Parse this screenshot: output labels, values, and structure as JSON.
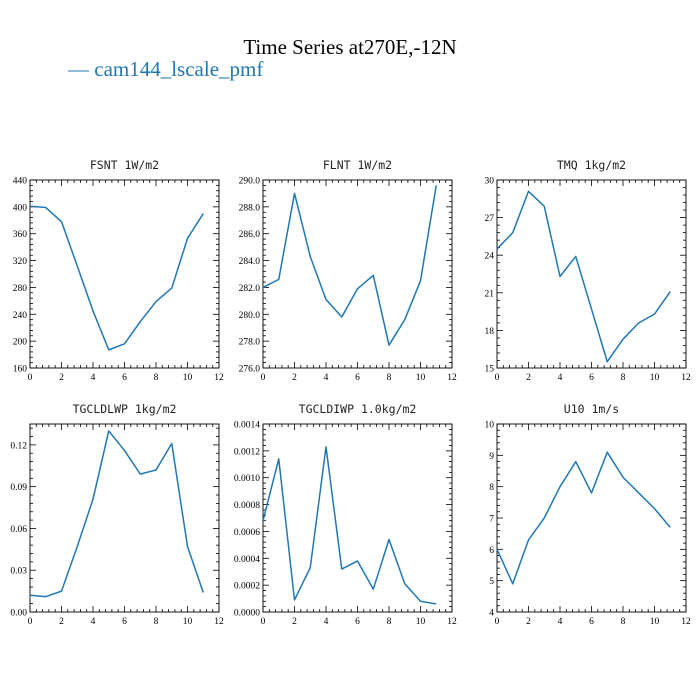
{
  "figure": {
    "title": "Time Series at270E,-12N",
    "legend_label": "— cam144_lscale_pmf",
    "series_color": "#1f77b4"
  },
  "chart_data": [
    {
      "type": "line",
      "title": "FSNT   1W/m2",
      "xlim": [
        0,
        12
      ],
      "ylim": [
        160,
        440
      ],
      "xticks": [
        0,
        2,
        4,
        6,
        8,
        10,
        12
      ],
      "xtick_labels": [
        "0",
        "2",
        "4",
        "6",
        "8",
        "10",
        "12"
      ],
      "yticks": [
        160,
        200,
        240,
        280,
        320,
        360,
        400,
        440
      ],
      "ytick_labels": [
        "160",
        "200",
        "240",
        "280",
        "320",
        "360",
        "400",
        "440"
      ],
      "series": [
        {
          "x": [
            0,
            1,
            2,
            3,
            4,
            5,
            6,
            7,
            8,
            9,
            10,
            11
          ],
          "values": [
            401,
            399,
            378,
            312,
            245,
            187,
            196,
            229,
            259,
            279,
            353,
            390
          ]
        }
      ]
    },
    {
      "type": "line",
      "title": "FLNT   1W/m2",
      "xlim": [
        0,
        12
      ],
      "ylim": [
        276,
        290
      ],
      "xticks": [
        0,
        2,
        4,
        6,
        8,
        10,
        12
      ],
      "xtick_labels": [
        "0",
        "2",
        "4",
        "6",
        "8",
        "10",
        "12"
      ],
      "yticks": [
        276,
        278,
        280,
        282,
        284,
        286,
        288,
        290
      ],
      "ytick_labels": [
        "276.0",
        "278.0",
        "280.0",
        "282.0",
        "284.0",
        "286.0",
        "288.0",
        "290.0"
      ],
      "series": [
        {
          "x": [
            0,
            1,
            2,
            3,
            4,
            5,
            6,
            7,
            8,
            9,
            10,
            11
          ],
          "values": [
            282.0,
            282.6,
            289.0,
            284.3,
            281.1,
            279.8,
            281.9,
            282.9,
            277.7,
            279.6,
            282.5,
            289.6
          ]
        }
      ]
    },
    {
      "type": "line",
      "title": "TMQ   1kg/m2",
      "xlim": [
        0,
        12
      ],
      "ylim": [
        15,
        30
      ],
      "xticks": [
        0,
        2,
        4,
        6,
        8,
        10,
        12
      ],
      "xtick_labels": [
        "0",
        "2",
        "4",
        "6",
        "8",
        "10",
        "12"
      ],
      "yticks": [
        15,
        18,
        21,
        24,
        27,
        30
      ],
      "ytick_labels": [
        "15",
        "18",
        "21",
        "24",
        "27",
        "30"
      ],
      "series": [
        {
          "x": [
            0,
            1,
            2,
            3,
            4,
            5,
            6,
            7,
            8,
            9,
            10,
            11
          ],
          "values": [
            24.5,
            25.8,
            29.1,
            27.9,
            22.3,
            23.9,
            19.7,
            15.5,
            17.3,
            18.6,
            19.3,
            21.1
          ]
        }
      ]
    },
    {
      "type": "line",
      "title": "TGCLDLWP   1kg/m2",
      "xlim": [
        0,
        12
      ],
      "ylim": [
        0,
        0.135
      ],
      "xticks": [
        0,
        2,
        4,
        6,
        8,
        10,
        12
      ],
      "xtick_labels": [
        "0",
        "2",
        "4",
        "6",
        "8",
        "10",
        "12"
      ],
      "yticks": [
        0,
        0.03,
        0.06,
        0.09,
        0.12
      ],
      "ytick_labels": [
        "0.00",
        "0.03",
        "0.06",
        "0.09",
        "0.12"
      ],
      "series": [
        {
          "x": [
            0,
            1,
            2,
            3,
            4,
            5,
            6,
            7,
            8,
            9,
            10,
            11
          ],
          "values": [
            0.012,
            0.011,
            0.015,
            0.047,
            0.081,
            0.13,
            0.116,
            0.099,
            0.102,
            0.121,
            0.047,
            0.014
          ]
        }
      ]
    },
    {
      "type": "line",
      "title": "TGCLDIWP   1.0kg/m2",
      "xlim": [
        0,
        12
      ],
      "ylim": [
        0,
        0.0014
      ],
      "xticks": [
        0,
        2,
        4,
        6,
        8,
        10,
        12
      ],
      "xtick_labels": [
        "0",
        "2",
        "4",
        "6",
        "8",
        "10",
        "12"
      ],
      "yticks": [
        0,
        0.0002,
        0.0004,
        0.0006,
        0.0008,
        0.001,
        0.0012,
        0.0014
      ],
      "ytick_labels": [
        "0.0000",
        "0.0002",
        "0.0004",
        "0.0006",
        "0.0008",
        "0.0010",
        "0.0012",
        "0.0014"
      ],
      "series": [
        {
          "x": [
            0,
            1,
            2,
            3,
            4,
            5,
            6,
            7,
            8,
            9,
            10,
            11
          ],
          "values": [
            0.00068,
            0.00114,
            9e-05,
            0.00033,
            0.00123,
            0.00032,
            0.00038,
            0.00017,
            0.00054,
            0.00021,
            8e-05,
            6e-05
          ]
        }
      ]
    },
    {
      "type": "line",
      "title": "U10   1m/s",
      "xlim": [
        0,
        12
      ],
      "ylim": [
        4,
        10
      ],
      "xticks": [
        0,
        2,
        4,
        6,
        8,
        10,
        12
      ],
      "xtick_labels": [
        "0",
        "2",
        "4",
        "6",
        "8",
        "10",
        "12"
      ],
      "yticks": [
        4,
        5,
        6,
        7,
        8,
        9,
        10
      ],
      "ytick_labels": [
        "4",
        "5",
        "6",
        "7",
        "8",
        "9",
        "10"
      ],
      "series": [
        {
          "x": [
            0,
            1,
            2,
            3,
            4,
            5,
            6,
            7,
            8,
            9,
            10,
            11
          ],
          "values": [
            6.0,
            4.9,
            6.3,
            7.0,
            8.0,
            8.8,
            7.8,
            9.1,
            8.3,
            7.8,
            7.3,
            6.7
          ]
        }
      ]
    }
  ]
}
